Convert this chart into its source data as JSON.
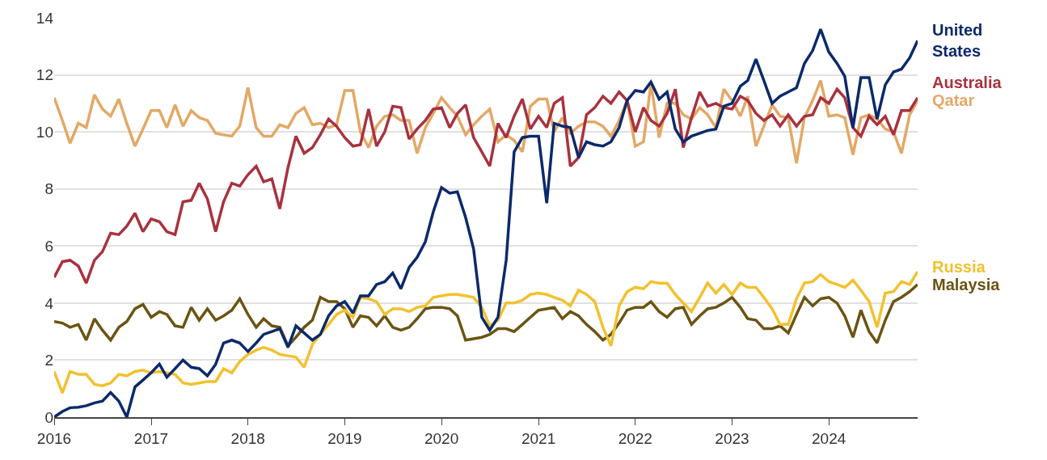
{
  "chart_data": {
    "type": "line",
    "x": [
      "2016-01",
      "2016-02",
      "2016-03",
      "2016-04",
      "2016-05",
      "2016-06",
      "2016-07",
      "2016-08",
      "2016-09",
      "2016-10",
      "2016-11",
      "2016-12",
      "2017-01",
      "2017-02",
      "2017-03",
      "2017-04",
      "2017-05",
      "2017-06",
      "2017-07",
      "2017-08",
      "2017-09",
      "2017-10",
      "2017-11",
      "2017-12",
      "2018-01",
      "2018-02",
      "2018-03",
      "2018-04",
      "2018-05",
      "2018-06",
      "2018-07",
      "2018-08",
      "2018-09",
      "2018-10",
      "2018-11",
      "2018-12",
      "2019-01",
      "2019-02",
      "2019-03",
      "2019-04",
      "2019-05",
      "2019-06",
      "2019-07",
      "2019-08",
      "2019-09",
      "2019-10",
      "2019-11",
      "2019-12",
      "2020-01",
      "2020-02",
      "2020-03",
      "2020-04",
      "2020-05",
      "2020-06",
      "2020-07",
      "2020-08",
      "2020-09",
      "2020-10",
      "2020-11",
      "2020-12",
      "2021-01",
      "2021-02",
      "2021-03",
      "2021-04",
      "2021-05",
      "2021-06",
      "2021-07",
      "2021-08",
      "2021-09",
      "2021-10",
      "2021-11",
      "2021-12",
      "2022-01",
      "2022-02",
      "2022-03",
      "2022-04",
      "2022-05",
      "2022-06",
      "2022-07",
      "2022-08",
      "2022-09",
      "2022-10",
      "2022-11",
      "2022-12",
      "2023-01",
      "2023-02",
      "2023-03",
      "2023-04",
      "2023-05",
      "2023-06",
      "2023-07",
      "2023-08",
      "2023-09",
      "2023-10",
      "2023-11",
      "2023-12",
      "2024-01",
      "2024-02",
      "2024-03",
      "2024-04",
      "2024-05",
      "2024-06",
      "2024-07",
      "2024-08",
      "2024-09",
      "2024-10",
      "2024-11",
      "2024-12"
    ],
    "series": [
      {
        "name": "Qatar",
        "color": "#e3a866",
        "values": [
          11.2,
          10.4,
          9.6,
          10.3,
          10.15,
          11.3,
          10.8,
          10.55,
          11.15,
          10.3,
          9.5,
          10.1,
          10.75,
          10.75,
          10.15,
          10.95,
          10.2,
          10.75,
          10.5,
          10.4,
          9.95,
          9.9,
          9.85,
          10.2,
          11.55,
          10.15,
          9.85,
          9.85,
          10.25,
          10.15,
          10.65,
          10.85,
          10.25,
          10.3,
          10.15,
          10.25,
          11.45,
          11.45,
          10.0,
          9.45,
          10.2,
          10.55,
          10.6,
          10.4,
          10.4,
          9.25,
          10.15,
          10.65,
          11.2,
          10.85,
          10.55,
          9.9,
          10.25,
          10.55,
          10.8,
          9.65,
          9.9,
          9.7,
          9.3,
          10.9,
          11.15,
          11.15,
          10.0,
          10.5,
          9.95,
          10.2,
          10.35,
          10.35,
          10.2,
          9.85,
          10.4,
          11.1,
          9.5,
          9.65,
          11.7,
          9.8,
          11.0,
          11.0,
          10.6,
          10.45,
          10.85,
          10.6,
          10.15,
          11.5,
          11.1,
          10.55,
          11.25,
          9.5,
          10.2,
          10.95,
          10.55,
          10.5,
          8.9,
          10.5,
          11.1,
          11.8,
          10.55,
          10.6,
          10.5,
          9.2,
          10.5,
          10.6,
          10.45,
          10.1,
          10.0,
          9.25,
          10.6,
          11.1
        ]
      },
      {
        "name": "Australia",
        "color": "#a8323e",
        "values": [
          4.9,
          5.45,
          5.5,
          5.3,
          4.7,
          5.5,
          5.8,
          6.45,
          6.4,
          6.7,
          7.15,
          6.5,
          6.95,
          6.85,
          6.5,
          6.4,
          7.55,
          7.6,
          8.2,
          7.65,
          6.5,
          7.55,
          8.2,
          8.1,
          8.5,
          8.8,
          8.25,
          8.35,
          7.3,
          8.75,
          9.85,
          9.25,
          9.45,
          9.9,
          10.45,
          10.2,
          9.8,
          9.5,
          9.55,
          10.8,
          9.5,
          10.0,
          10.9,
          10.85,
          9.75,
          10.1,
          10.4,
          10.8,
          10.85,
          10.15,
          10.65,
          10.95,
          9.8,
          9.3,
          8.8,
          10.3,
          9.8,
          10.55,
          11.15,
          10.1,
          10.55,
          10.15,
          11.0,
          11.2,
          8.8,
          9.1,
          10.6,
          10.85,
          11.25,
          11.0,
          11.4,
          11.1,
          10.0,
          10.85,
          10.4,
          10.2,
          10.65,
          11.5,
          9.45,
          10.5,
          11.4,
          10.9,
          11.0,
          10.85,
          10.8,
          11.25,
          11.1,
          10.65,
          10.4,
          10.6,
          10.2,
          10.6,
          10.2,
          10.55,
          10.6,
          11.2,
          11.0,
          11.5,
          11.2,
          10.15,
          9.85,
          10.55,
          10.25,
          10.55,
          9.9,
          10.75,
          10.75,
          11.2
        ]
      },
      {
        "name": "Malaysia",
        "color": "#6b5412",
        "values": [
          3.35,
          3.3,
          3.15,
          3.25,
          2.7,
          3.45,
          3.05,
          2.7,
          3.15,
          3.35,
          3.8,
          3.95,
          3.5,
          3.7,
          3.6,
          3.2,
          3.15,
          3.85,
          3.4,
          3.8,
          3.4,
          3.55,
          3.75,
          4.15,
          3.6,
          3.15,
          3.45,
          3.2,
          3.15,
          2.5,
          2.8,
          3.15,
          3.4,
          4.2,
          4.05,
          4.05,
          3.8,
          3.15,
          3.55,
          3.5,
          3.2,
          3.55,
          3.15,
          3.05,
          3.15,
          3.45,
          3.8,
          3.85,
          3.85,
          3.8,
          3.55,
          2.7,
          2.75,
          2.8,
          2.9,
          3.1,
          3.1,
          3.0,
          3.25,
          3.5,
          3.75,
          3.8,
          3.85,
          3.45,
          3.7,
          3.55,
          3.25,
          3.0,
          2.7,
          2.9,
          3.3,
          3.75,
          3.85,
          3.85,
          4.05,
          3.7,
          3.5,
          3.8,
          3.85,
          3.25,
          3.55,
          3.8,
          3.85,
          4.0,
          4.2,
          3.85,
          3.45,
          3.4,
          3.1,
          3.1,
          3.2,
          2.95,
          3.6,
          4.2,
          3.9,
          4.15,
          4.2,
          4.0,
          3.55,
          2.8,
          3.75,
          3.0,
          2.6,
          3.4,
          4.05,
          4.2,
          4.4,
          4.65
        ]
      },
      {
        "name": "Russia",
        "color": "#f2c12e",
        "values": [
          1.6,
          0.85,
          1.6,
          1.5,
          1.5,
          1.15,
          1.1,
          1.2,
          1.5,
          1.45,
          1.6,
          1.65,
          1.55,
          1.6,
          1.55,
          1.5,
          1.2,
          1.15,
          1.2,
          1.25,
          1.25,
          1.7,
          1.55,
          1.95,
          2.2,
          2.35,
          2.45,
          2.35,
          2.2,
          2.15,
          2.1,
          1.75,
          2.55,
          2.9,
          3.25,
          3.6,
          3.75,
          3.5,
          4.2,
          4.15,
          4.05,
          3.6,
          3.8,
          3.8,
          3.7,
          3.85,
          3.9,
          4.2,
          4.25,
          4.3,
          4.3,
          4.25,
          4.2,
          3.85,
          3.2,
          3.4,
          4.0,
          4.0,
          4.1,
          4.3,
          4.35,
          4.3,
          4.2,
          4.1,
          3.9,
          4.45,
          4.3,
          4.05,
          3.15,
          2.5,
          3.9,
          4.4,
          4.55,
          4.5,
          4.75,
          4.7,
          4.7,
          4.3,
          4.0,
          3.7,
          4.2,
          4.7,
          4.35,
          4.65,
          4.3,
          4.7,
          4.55,
          4.55,
          4.2,
          3.8,
          3.25,
          3.25,
          4.15,
          4.7,
          4.75,
          5.0,
          4.75,
          4.65,
          4.55,
          4.8,
          4.45,
          4.05,
          3.15,
          4.35,
          4.4,
          4.75,
          4.65,
          5.1
        ]
      },
      {
        "name": "United States",
        "color": "#0b2a6b",
        "values": [
          0,
          0.2,
          0.33,
          0.35,
          0.4,
          0.5,
          0.56,
          0.86,
          0.56,
          0,
          1.06,
          1.3,
          1.56,
          1.86,
          1.4,
          1.7,
          2.0,
          1.75,
          1.7,
          1.45,
          1.85,
          2.6,
          2.7,
          2.6,
          2.3,
          2.6,
          2.9,
          3.0,
          3.1,
          2.45,
          3.2,
          2.95,
          2.7,
          2.9,
          3.55,
          3.9,
          4.05,
          3.65,
          4.25,
          4.25,
          4.65,
          4.75,
          5.05,
          4.5,
          5.25,
          5.6,
          6.15,
          7.2,
          8.05,
          7.85,
          7.9,
          7.0,
          5.9,
          3.5,
          3.05,
          3.5,
          5.5,
          9.3,
          9.8,
          9.85,
          9.85,
          7.5,
          10.3,
          10.2,
          10.15,
          9.1,
          9.65,
          9.55,
          9.5,
          9.65,
          10.15,
          11.1,
          11.45,
          11.4,
          11.75,
          11.15,
          11.4,
          10.1,
          9.65,
          9.85,
          9.95,
          10.05,
          10.1,
          10.9,
          11.0,
          11.6,
          11.8,
          12.55,
          11.8,
          11.0,
          11.25,
          11.4,
          11.55,
          12.4,
          12.85,
          13.6,
          12.8,
          12.4,
          11.95,
          10.15,
          11.9,
          11.9,
          10.45,
          11.65,
          12.1,
          12.2,
          12.6,
          13.2
        ]
      }
    ],
    "xlim": [
      "2016-01",
      "2024-12"
    ],
    "xticks": [
      "2016",
      "2017",
      "2018",
      "2019",
      "2020",
      "2021",
      "2022",
      "2023",
      "2024"
    ],
    "ylim": [
      0,
      14
    ],
    "yticks": [
      0,
      2,
      4,
      6,
      8,
      10,
      12,
      14
    ],
    "grid": "y",
    "legend": false,
    "marker": "none",
    "line_style": "solid"
  }
}
